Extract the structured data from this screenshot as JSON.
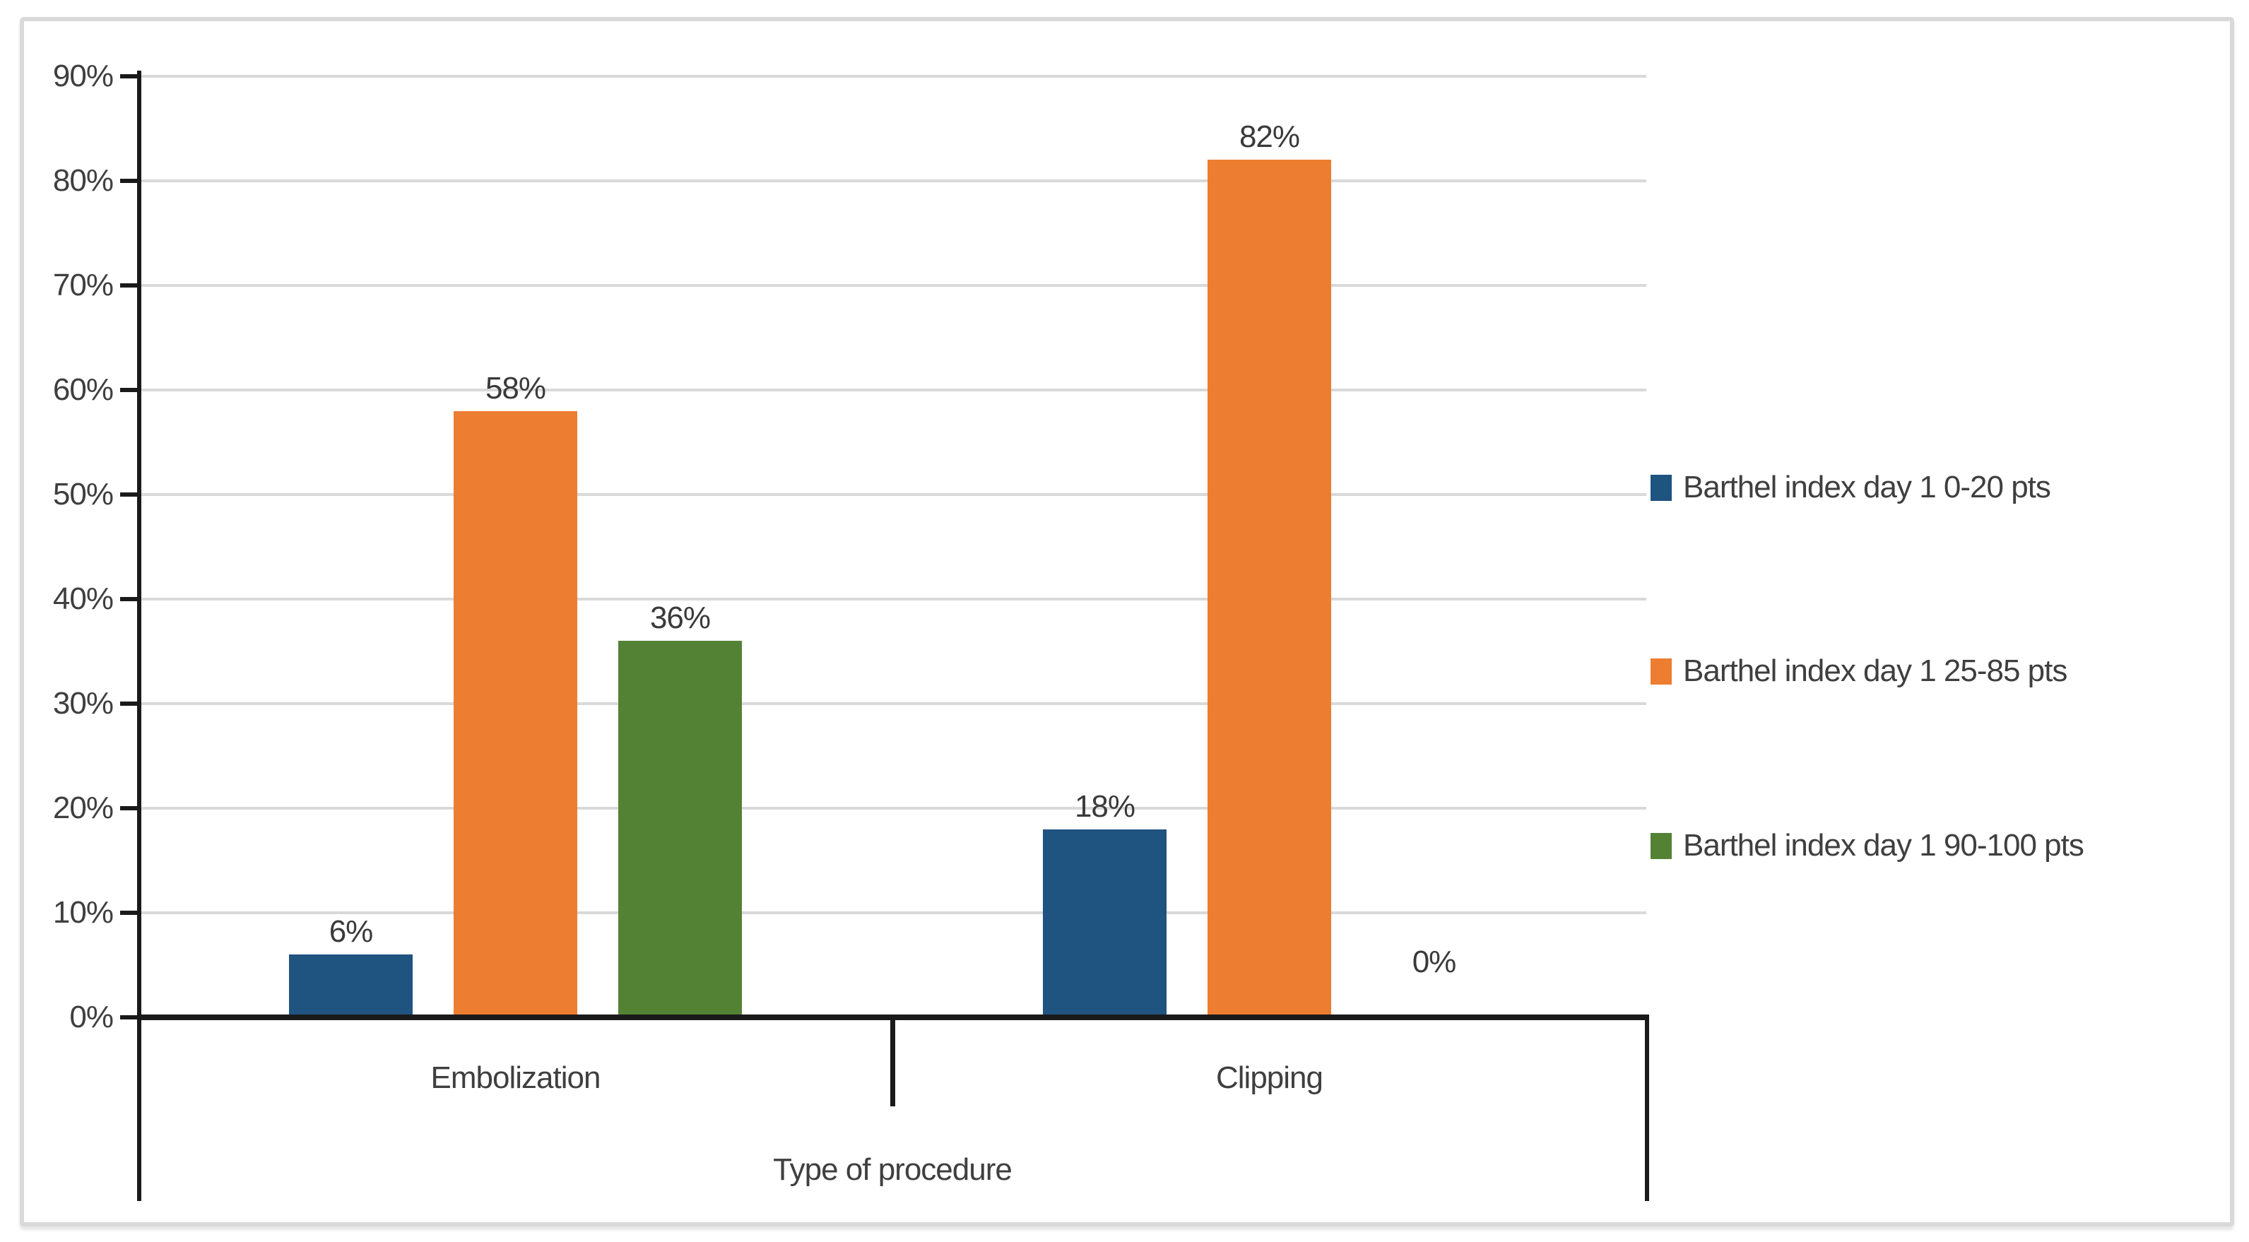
{
  "figure": {
    "background": "#ffffff",
    "border_color": "#d9d9d9"
  },
  "chart_data": {
    "type": "bar",
    "title": "",
    "categories": [
      "Embolization",
      "Clipping"
    ],
    "series": [
      {
        "name": "Barthel index day 1 0-20 pts",
        "color": "#1f5380",
        "values": [
          6,
          18
        ],
        "labels": [
          "6%",
          "18%"
        ]
      },
      {
        "name": "Barthel index day 1 25-85 pts",
        "color": "#ed7d31",
        "values": [
          58,
          82
        ],
        "labels": [
          "58%",
          "82%"
        ]
      },
      {
        "name": "Barthel index day 1 90-100 pts",
        "color": "#548235",
        "values": [
          36,
          0
        ],
        "labels": [
          "36%",
          "0%"
        ]
      }
    ],
    "xlabel": "Type of procedure",
    "ylabel": "",
    "ylim": [
      0,
      90
    ],
    "ytick_step": 10,
    "ytick_labels": [
      "0%",
      "10%",
      "20%",
      "30%",
      "40%",
      "50%",
      "60%",
      "70%",
      "80%",
      "90%"
    ],
    "grid": true,
    "legend_position": "right",
    "gridline_color": "#d9d9d9",
    "axis_color": "#1a1a1a",
    "text_color": "#3f3f3f"
  }
}
